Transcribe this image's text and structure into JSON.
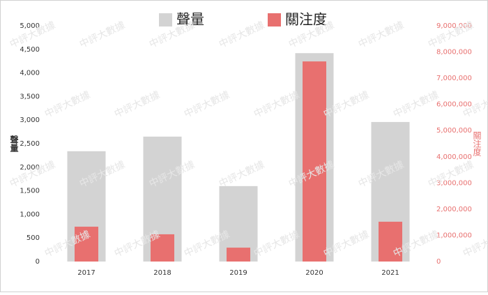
{
  "chart_data": {
    "type": "bar",
    "watermark": "中評大數據",
    "categories": [
      "2017",
      "2018",
      "2019",
      "2020",
      "2021"
    ],
    "series": [
      {
        "name": "聲量",
        "color": "#d3d3d3",
        "values": [
          2340,
          2650,
          1600,
          4420,
          2960
        ]
      },
      {
        "name": "關注度",
        "color": "#e8706f",
        "axis": "y2",
        "values": [
          1330000,
          1040000,
          530000,
          7640000,
          1520000
        ]
      }
    ],
    "ylabel": "聲量",
    "y2label": "關注度",
    "ylim": [
      0,
      5000
    ],
    "yticks": [
      0,
      500,
      {
        "value": 1000,
        "label": "1,000"
      },
      {
        "value": 1500,
        "label": "1,500"
      },
      {
        "value": 2000,
        "label": "2,000"
      },
      {
        "value": 2500,
        "label": "2,500"
      },
      {
        "value": 3000,
        "label": "3,000"
      },
      {
        "value": 3500,
        "label": "3,500"
      },
      {
        "value": 4000,
        "label": "4,000"
      },
      {
        "value": 4500,
        "label": "4,500"
      },
      {
        "value": 5000,
        "label": "5,000"
      }
    ],
    "y2lim": [
      0,
      9000000
    ],
    "y2ticks": [
      0,
      {
        "value": 1000000,
        "label": "1,000,000"
      },
      {
        "value": 2000000,
        "label": "2,000,000"
      },
      {
        "value": 3000000,
        "label": "3,000,000"
      },
      {
        "value": 4000000,
        "label": "4,000,000"
      },
      {
        "value": 5000000,
        "label": "5,000,000"
      },
      {
        "value": 6000000,
        "label": "6,000,000"
      },
      {
        "value": 7000000,
        "label": "7,000,000"
      },
      {
        "value": 8000000,
        "label": "8,000,000"
      },
      {
        "value": 9000000,
        "label": "9,000,000"
      }
    ],
    "legend": "top",
    "grid": false
  }
}
